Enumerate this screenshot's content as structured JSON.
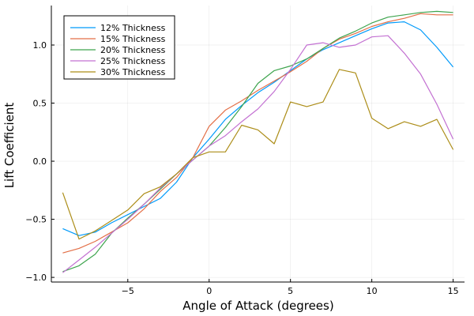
{
  "chart_data": {
    "type": "line",
    "title": "",
    "xlabel": "Angle of Attack (degrees)",
    "ylabel": "Lift Coefficient",
    "xlim": [
      -9.7,
      15.7
    ],
    "ylim": [
      -1.04,
      1.34
    ],
    "xticks": [
      -5,
      0,
      5,
      10,
      15
    ],
    "xtick_labels": [
      "−5",
      "0",
      "5",
      "10",
      "15"
    ],
    "yticks": [
      -1.0,
      -0.5,
      0.0,
      0.5,
      1.0
    ],
    "ytick_labels": [
      "−1.0",
      "−0.5",
      "0.0",
      "0.5",
      "1.0"
    ],
    "grid": true,
    "legend_position": "top-left",
    "x": [
      -9,
      -8,
      -7,
      -6,
      -5,
      -4,
      -3,
      -2,
      -1,
      0,
      1,
      2,
      3,
      4,
      5,
      6,
      7,
      8,
      9,
      10,
      11,
      12,
      13,
      14,
      15
    ],
    "series": [
      {
        "name": "12% Thickness",
        "color": "#009AFA",
        "values": [
          -0.58,
          -0.64,
          -0.61,
          -0.53,
          -0.46,
          -0.39,
          -0.32,
          -0.18,
          0.03,
          0.19,
          0.36,
          0.48,
          0.59,
          0.68,
          0.78,
          0.88,
          0.96,
          1.02,
          1.08,
          1.14,
          1.19,
          1.2,
          1.13,
          0.98,
          0.81
        ]
      },
      {
        "name": "15% Thickness",
        "color": "#E36F47",
        "values": [
          -0.79,
          -0.75,
          -0.69,
          -0.61,
          -0.53,
          -0.41,
          -0.26,
          -0.14,
          0.03,
          0.3,
          0.44,
          0.52,
          0.61,
          0.69,
          0.77,
          0.86,
          0.97,
          1.05,
          1.1,
          1.16,
          1.2,
          1.23,
          1.27,
          1.26,
          1.26
        ]
      },
      {
        "name": "20% Thickness",
        "color": "#3EA44E",
        "values": [
          -0.95,
          -0.9,
          -0.8,
          -0.62,
          -0.49,
          -0.37,
          -0.24,
          -0.11,
          0.01,
          0.13,
          0.29,
          0.47,
          0.67,
          0.78,
          0.82,
          0.88,
          0.97,
          1.06,
          1.12,
          1.19,
          1.24,
          1.26,
          1.28,
          1.29,
          1.28
        ]
      },
      {
        "name": "25% Thickness",
        "color": "#C371D2",
        "values": [
          -0.96,
          -0.85,
          -0.74,
          -0.62,
          -0.5,
          -0.37,
          -0.23,
          -0.11,
          0.01,
          0.13,
          0.22,
          0.34,
          0.45,
          0.6,
          0.79,
          1.0,
          1.02,
          0.98,
          1.0,
          1.07,
          1.08,
          0.93,
          0.75,
          0.49,
          0.19
        ]
      },
      {
        "name": "30% Thickness",
        "color": "#AC8D18",
        "values": [
          -0.27,
          -0.67,
          -0.6,
          -0.51,
          -0.42,
          -0.28,
          -0.22,
          -0.11,
          0.03,
          0.08,
          0.08,
          0.31,
          0.27,
          0.15,
          0.51,
          0.47,
          0.51,
          0.79,
          0.76,
          0.37,
          0.28,
          0.34,
          0.3,
          0.36,
          0.1
        ]
      }
    ]
  }
}
